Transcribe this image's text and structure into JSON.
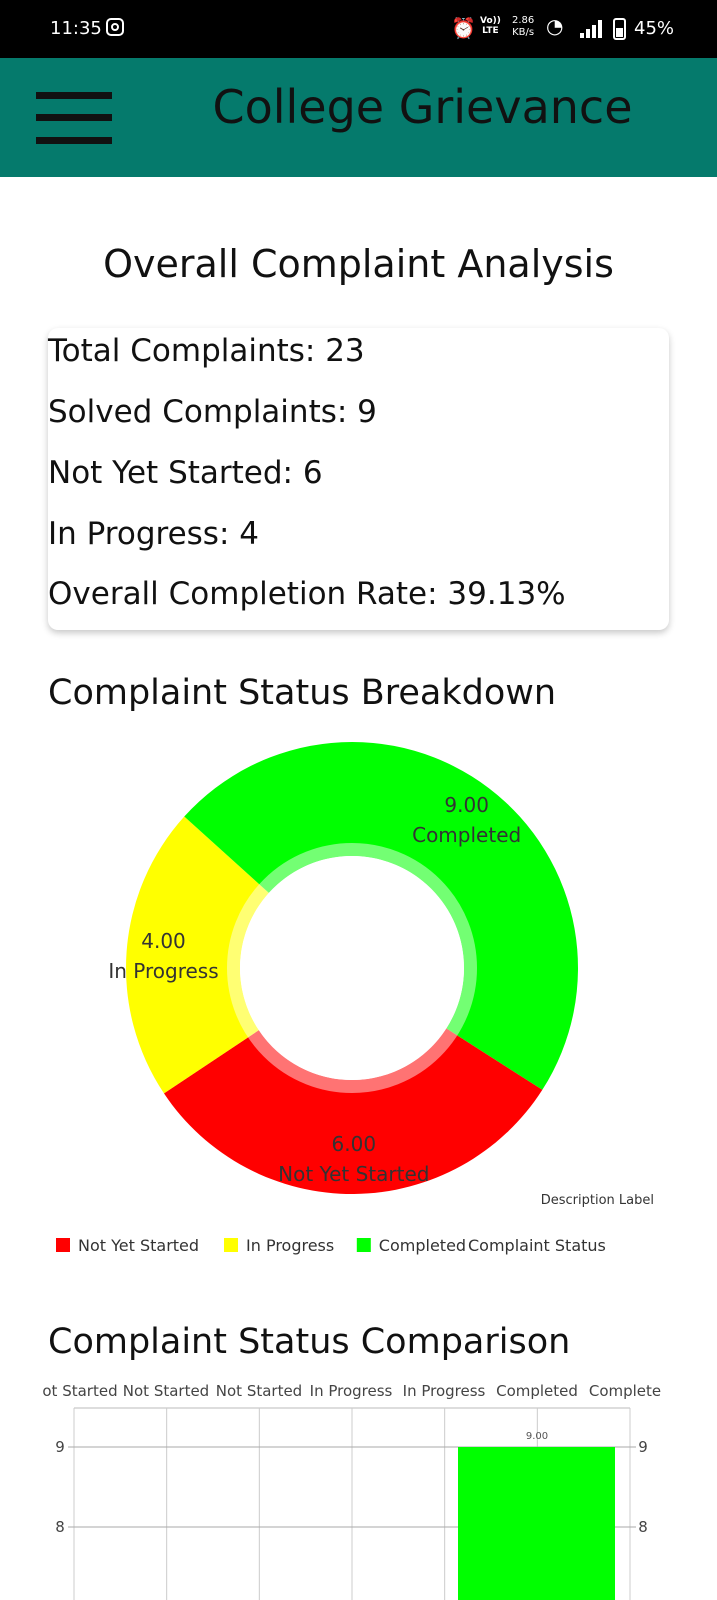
{
  "status_bar": {
    "time": "11:35",
    "volte_top": "Vo))",
    "volte_bottom": "LTE",
    "speed_value": "2.86",
    "speed_unit": "KB/s",
    "battery": "45%"
  },
  "app_bar": {
    "title": "College Grievance",
    "menu_icon": "hamburger-menu-icon"
  },
  "page_title": "Overall Complaint Analysis",
  "stats": {
    "total": "Total Complaints: 23",
    "solved": "Solved Complaints: 9",
    "not_started": "Not Yet Started: 6",
    "in_progress": "In Progress: 4",
    "completion_rate": "Overall Completion Rate: 39.13%"
  },
  "pie_section_title": "Complaint Status Breakdown",
  "bar_section_title": "Complaint Status Comparison",
  "chart_data": [
    {
      "type": "pie",
      "variant": "donut",
      "title": "Complaint Status Breakdown",
      "description_label": "Description Label",
      "legend_label": "Complaint Status",
      "legend_position": "bottom-left",
      "slices": [
        {
          "label": "Not Yet Started",
          "value": 6,
          "value_text": "6.00",
          "color": "#ff0000"
        },
        {
          "label": "In Progress",
          "value": 4,
          "value_text": "4.00",
          "color": "#ffff00"
        },
        {
          "label": "Completed",
          "value": 9,
          "value_text": "9.00",
          "color": "#00ff00"
        }
      ]
    },
    {
      "type": "bar",
      "title": "Complaint Status Comparison",
      "top_axis_labels": [
        "ot Started",
        "Not Started",
        "Not Started",
        "In Progress",
        "In Progress",
        "Completed",
        "Complete"
      ],
      "y_ticks_left": [
        "9",
        "8"
      ],
      "y_ticks_right": [
        "9",
        "8"
      ],
      "y_visible_range": [
        8,
        9
      ],
      "bars": [
        {
          "category": "Completed",
          "value": 9,
          "value_text": "9.00",
          "color": "#00ff00"
        }
      ]
    }
  ],
  "colors": {
    "app_bar": "#057a6c",
    "not_started": "#ff0000",
    "in_progress": "#ffff00",
    "completed": "#00ff00"
  }
}
